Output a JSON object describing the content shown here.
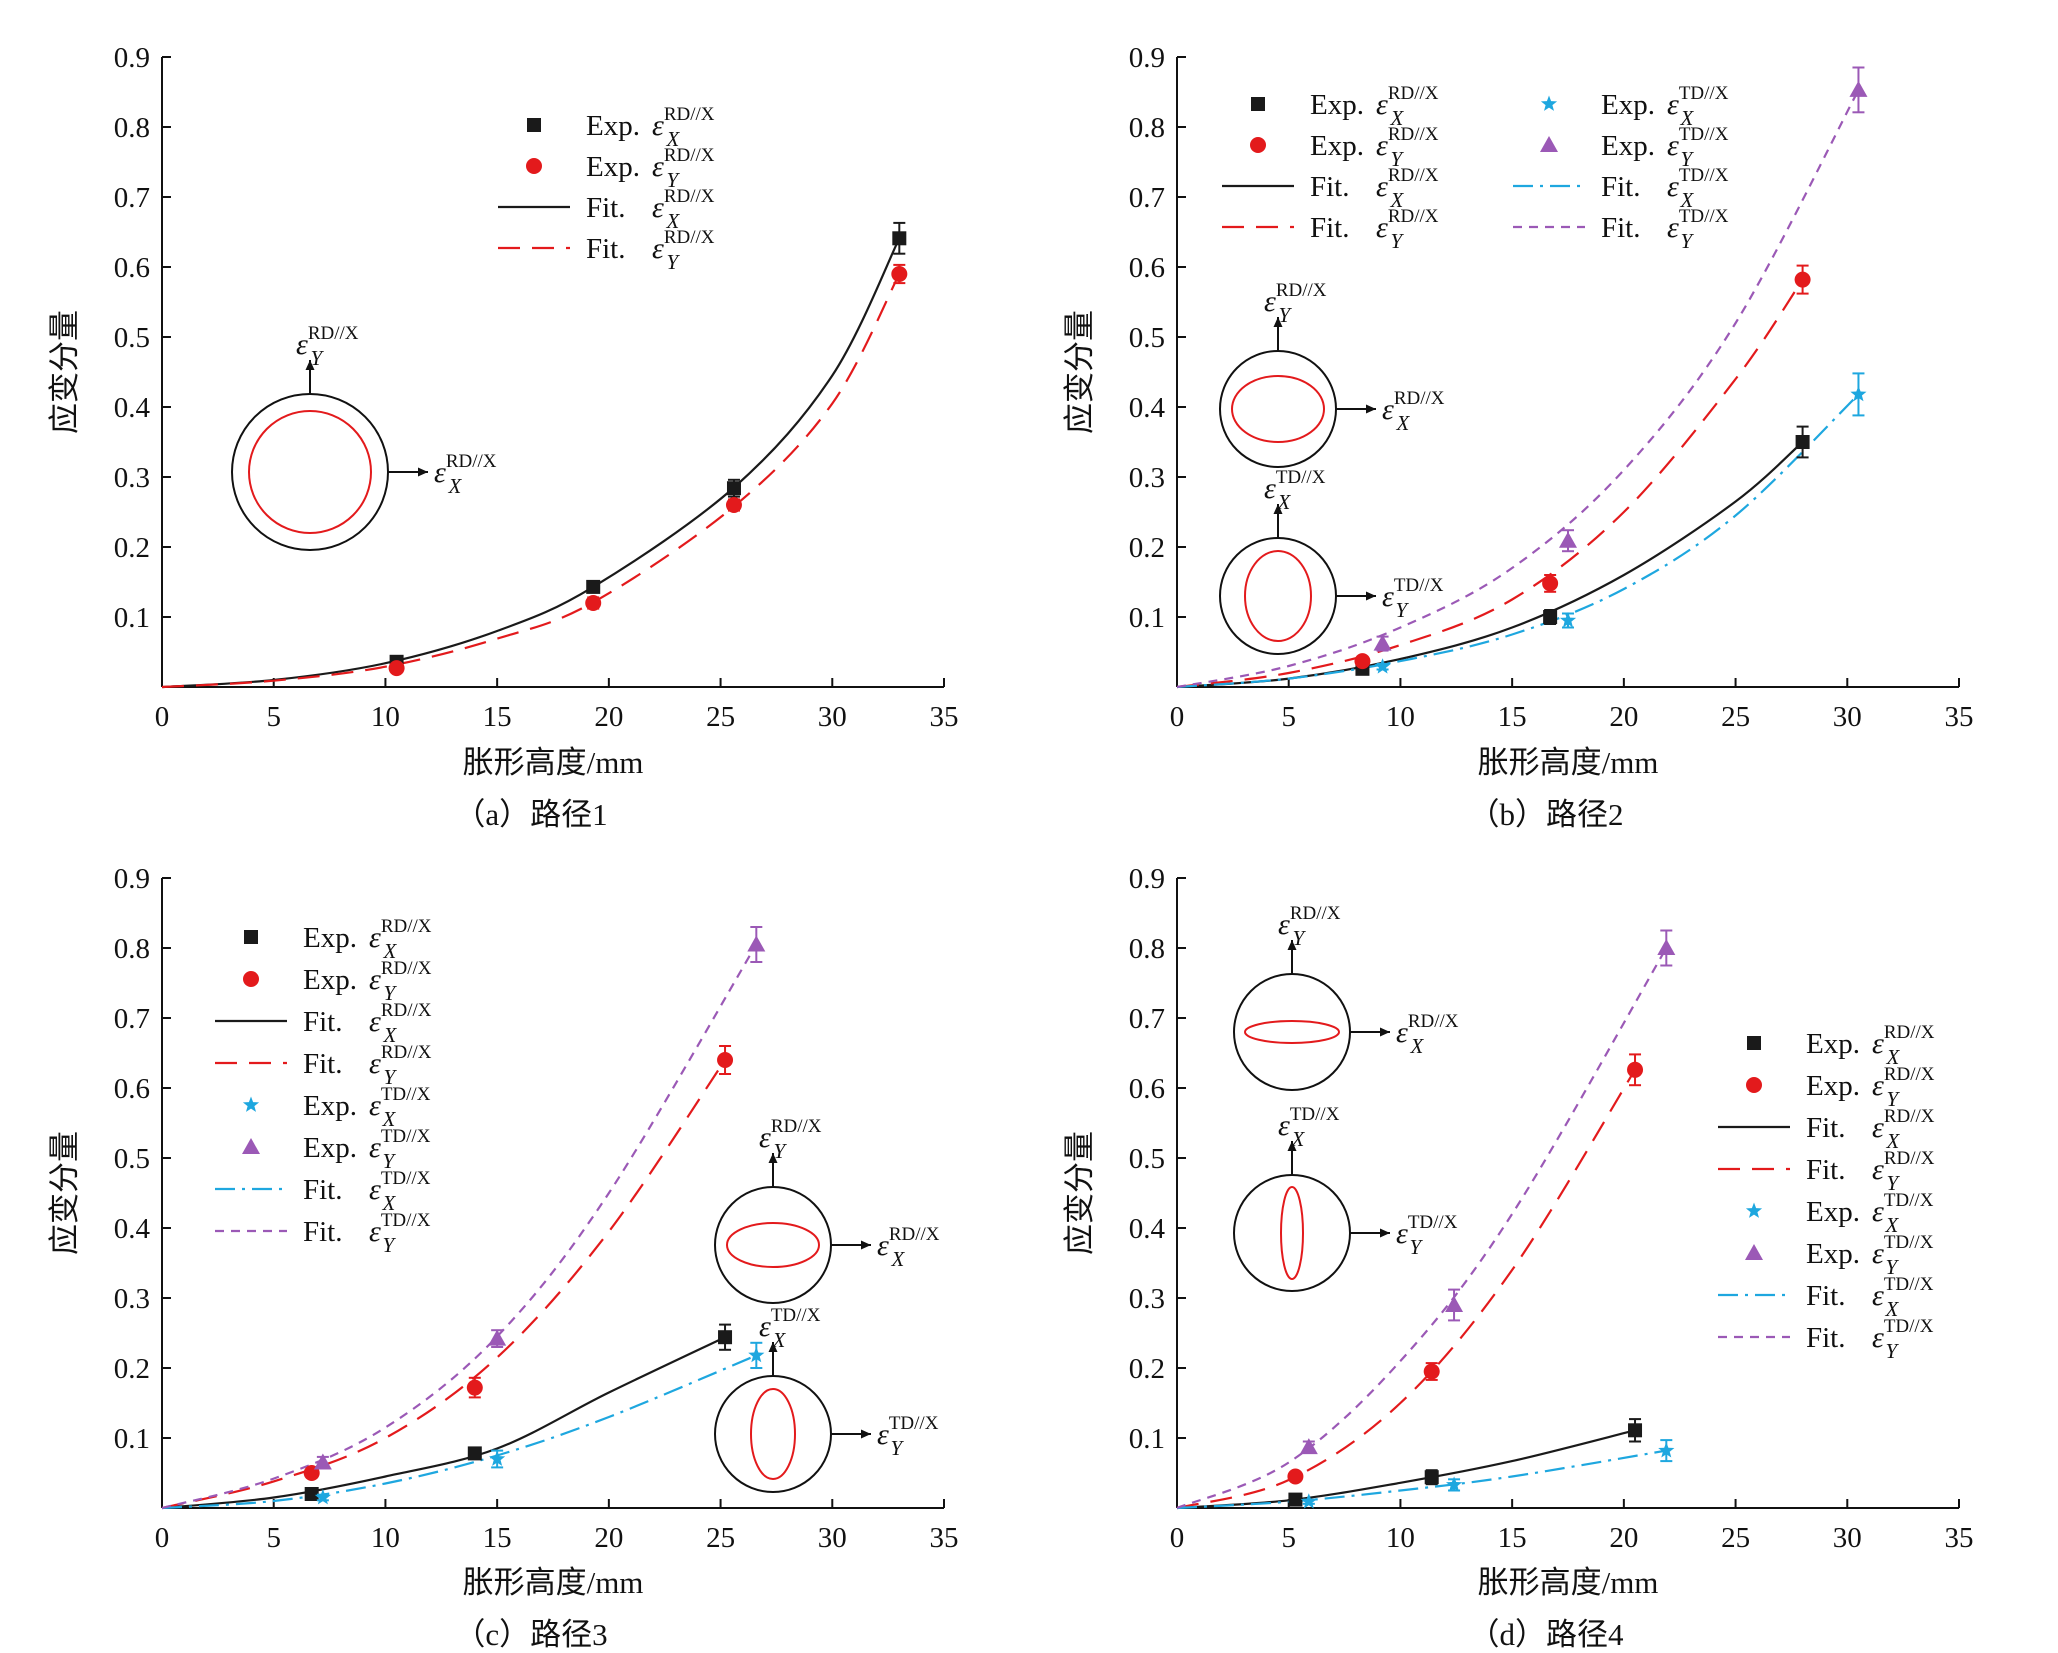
{
  "chart_data": [
    {
      "type": "line",
      "caption": "（a）路径1",
      "xlabel": "胀形高度/mm",
      "ylabel": "应变分量",
      "xlim": [
        0,
        35
      ],
      "ylim": [
        0,
        0.9
      ],
      "x_ticks": [
        0,
        5,
        10,
        15,
        20,
        25,
        30,
        35
      ],
      "y_ticks": [
        0.1,
        0.2,
        0.3,
        0.4,
        0.5,
        0.6,
        0.7,
        0.8,
        0.9
      ],
      "legend_position": "top-right",
      "series": [
        {
          "name": "Exp. ε_X^RD//X",
          "kind": "exp",
          "marker": "square",
          "color": "#1a1a1a",
          "x": [
            10.5,
            19.3,
            25.6,
            33.0
          ],
          "y": [
            0.036,
            0.143,
            0.284,
            0.641
          ],
          "err": [
            0.005,
            0.008,
            0.012,
            0.022
          ]
        },
        {
          "name": "Exp. ε_Y^RD//X",
          "kind": "exp",
          "marker": "circle",
          "color": "#e31a1c",
          "x": [
            10.5,
            19.3,
            25.6,
            33.0
          ],
          "y": [
            0.027,
            0.12,
            0.26,
            0.59
          ],
          "err": [
            0.005,
            0.008,
            0.008,
            0.013
          ]
        },
        {
          "name": "Fit. ε_X^RD//X",
          "kind": "fit",
          "dash": "solid",
          "color": "#1a1a1a",
          "x": [
            0,
            5,
            10,
            15,
            19.3,
            25.6,
            30,
            33.0
          ],
          "y": [
            0,
            0.01,
            0.034,
            0.08,
            0.143,
            0.285,
            0.445,
            0.641
          ]
        },
        {
          "name": "Fit. ε_Y^RD//X",
          "kind": "fit",
          "dash": "long",
          "color": "#e31a1c",
          "x": [
            0,
            5,
            10,
            15,
            19.3,
            25.6,
            30,
            33.0
          ],
          "y": [
            0,
            0.009,
            0.029,
            0.069,
            0.121,
            0.258,
            0.405,
            0.59
          ]
        }
      ],
      "insets": [
        {
          "shape": "circle",
          "x_label": "ε_X^RD//X",
          "y_label": "ε_Y^RD//X"
        }
      ]
    },
    {
      "type": "line",
      "caption": "（b）路径2",
      "xlabel": "胀形高度/mm",
      "ylabel": "应变分量",
      "xlim": [
        0,
        35
      ],
      "ylim": [
        0,
        0.9
      ],
      "x_ticks": [
        0,
        5,
        10,
        15,
        20,
        25,
        30,
        35
      ],
      "y_ticks": [
        0.1,
        0.2,
        0.3,
        0.4,
        0.5,
        0.6,
        0.7,
        0.8,
        0.9
      ],
      "legend_position": "top",
      "series": [
        {
          "name": "Exp. ε_X^RD//X",
          "kind": "exp",
          "marker": "square",
          "color": "#1a1a1a",
          "x": [
            8.3,
            16.7,
            28.0
          ],
          "y": [
            0.026,
            0.1,
            0.35
          ],
          "err": [
            0.004,
            0.01,
            0.022
          ]
        },
        {
          "name": "Exp. ε_Y^RD//X",
          "kind": "exp",
          "marker": "circle",
          "color": "#e31a1c",
          "x": [
            8.3,
            16.7,
            28.0
          ],
          "y": [
            0.037,
            0.148,
            0.582
          ],
          "err": [
            0.005,
            0.012,
            0.02
          ]
        },
        {
          "name": "Fit. ε_X^RD//X",
          "kind": "fit",
          "dash": "solid",
          "color": "#1a1a1a",
          "x": [
            0,
            5,
            10,
            15,
            20,
            25,
            28
          ],
          "y": [
            0,
            0.012,
            0.04,
            0.085,
            0.16,
            0.265,
            0.35
          ]
        },
        {
          "name": "Fit. ε_Y^RD//X",
          "kind": "fit",
          "dash": "long",
          "color": "#e31a1c",
          "x": [
            0,
            5,
            10,
            15,
            20,
            25,
            28
          ],
          "y": [
            0,
            0.02,
            0.06,
            0.125,
            0.25,
            0.44,
            0.582
          ]
        },
        {
          "name": "Exp. ε_X^TD//X",
          "kind": "exp",
          "marker": "star",
          "color": "#1ea7df",
          "x": [
            9.2,
            17.5,
            30.5
          ],
          "y": [
            0.029,
            0.095,
            0.418
          ],
          "err": [
            0.004,
            0.01,
            0.03
          ]
        },
        {
          "name": "Exp. ε_Y^TD//X",
          "kind": "exp",
          "marker": "triangle",
          "color": "#9b59b6",
          "x": [
            9.2,
            17.5,
            30.5
          ],
          "y": [
            0.062,
            0.209,
            0.853
          ],
          "err": [
            0.01,
            0.015,
            0.032
          ]
        },
        {
          "name": "Fit. ε_X^TD//X",
          "kind": "fit",
          "dash": "dashdot",
          "color": "#1ea7df",
          "x": [
            0,
            5,
            10,
            15,
            20,
            25,
            30.5
          ],
          "y": [
            0,
            0.012,
            0.037,
            0.075,
            0.14,
            0.245,
            0.418
          ]
        },
        {
          "name": "Fit. ε_Y^TD//X",
          "kind": "fit",
          "dash": "short",
          "color": "#9b59b6",
          "x": [
            0,
            5,
            10,
            15,
            20,
            25,
            30.5
          ],
          "y": [
            0,
            0.03,
            0.085,
            0.17,
            0.31,
            0.52,
            0.853
          ]
        }
      ],
      "insets": [
        {
          "shape": "horizontal-ellipse",
          "x_label": "ε_X^RD//X",
          "y_label": "ε_Y^RD//X"
        },
        {
          "shape": "vertical-ellipse",
          "x_label": "ε_Y^TD//X",
          "y_label": "ε_X^TD//X"
        }
      ]
    },
    {
      "type": "line",
      "caption": "（c）路径3",
      "xlabel": "胀形高度/mm",
      "ylabel": "应变分量",
      "xlim": [
        0,
        35
      ],
      "ylim": [
        0,
        0.9
      ],
      "x_ticks": [
        0,
        5,
        10,
        15,
        20,
        25,
        30,
        35
      ],
      "y_ticks": [
        0.1,
        0.2,
        0.3,
        0.4,
        0.5,
        0.6,
        0.7,
        0.8,
        0.9
      ],
      "legend_position": "top-left",
      "series": [
        {
          "name": "Exp. ε_X^RD//X",
          "kind": "exp",
          "marker": "square",
          "color": "#1a1a1a",
          "x": [
            6.7,
            14.0,
            25.2
          ],
          "y": [
            0.02,
            0.078,
            0.244
          ],
          "err": [
            0.004,
            0.008,
            0.018
          ]
        },
        {
          "name": "Exp. ε_Y^RD//X",
          "kind": "exp",
          "marker": "circle",
          "color": "#e31a1c",
          "x": [
            6.7,
            14.0,
            25.2
          ],
          "y": [
            0.05,
            0.172,
            0.64
          ],
          "err": [
            0.006,
            0.014,
            0.02
          ]
        },
        {
          "name": "Fit. ε_X^RD//X",
          "kind": "fit",
          "dash": "solid",
          "color": "#1a1a1a",
          "x": [
            0,
            5,
            10,
            15,
            20,
            25.2
          ],
          "y": [
            0,
            0.015,
            0.045,
            0.085,
            0.165,
            0.244
          ]
        },
        {
          "name": "Fit. ε_Y^RD//X",
          "kind": "fit",
          "dash": "long",
          "color": "#e31a1c",
          "x": [
            0,
            5,
            10,
            15,
            20,
            25.2
          ],
          "y": [
            0,
            0.038,
            0.1,
            0.215,
            0.395,
            0.64
          ]
        },
        {
          "name": "Exp. ε_X^TD//X",
          "kind": "exp",
          "marker": "star",
          "color": "#1ea7df",
          "x": [
            7.2,
            15.0,
            26.6
          ],
          "y": [
            0.015,
            0.07,
            0.218
          ],
          "err": [
            0.004,
            0.012,
            0.018
          ]
        },
        {
          "name": "Exp. ε_Y^TD//X",
          "kind": "exp",
          "marker": "triangle",
          "color": "#9b59b6",
          "x": [
            7.2,
            15.0,
            26.6
          ],
          "y": [
            0.065,
            0.242,
            0.805
          ],
          "err": [
            0.008,
            0.012,
            0.025
          ]
        },
        {
          "name": "Fit. ε_X^TD//X",
          "kind": "fit",
          "dash": "dashdot",
          "color": "#1ea7df",
          "x": [
            0,
            5,
            10,
            15,
            20,
            26.6
          ],
          "y": [
            0,
            0.01,
            0.035,
            0.075,
            0.13,
            0.218
          ]
        },
        {
          "name": "Fit. ε_Y^TD//X",
          "kind": "fit",
          "dash": "short",
          "color": "#9b59b6",
          "x": [
            0,
            5,
            10,
            15,
            20,
            26.6
          ],
          "y": [
            0,
            0.042,
            0.115,
            0.245,
            0.45,
            0.805
          ]
        }
      ],
      "insets": [
        {
          "shape": "horizontal-ellipse",
          "x_label": "ε_X^RD//X",
          "y_label": "ε_Y^RD//X"
        },
        {
          "shape": "vertical-ellipse",
          "x_label": "ε_Y^TD//X",
          "y_label": "ε_X^TD//X"
        }
      ]
    },
    {
      "type": "line",
      "caption": "（d）路径4",
      "xlabel": "胀形高度/mm",
      "ylabel": "应变分量",
      "xlim": [
        0,
        35
      ],
      "ylim": [
        0,
        0.9
      ],
      "x_ticks": [
        0,
        5,
        10,
        15,
        20,
        25,
        30,
        35
      ],
      "y_ticks": [
        0.1,
        0.2,
        0.3,
        0.4,
        0.5,
        0.6,
        0.7,
        0.8,
        0.9
      ],
      "legend_position": "right",
      "series": [
        {
          "name": "Exp. ε_X^RD//X",
          "kind": "exp",
          "marker": "square",
          "color": "#1a1a1a",
          "x": [
            5.3,
            11.4,
            20.5
          ],
          "y": [
            0.012,
            0.044,
            0.111
          ],
          "err": [
            0.004,
            0.01,
            0.016
          ]
        },
        {
          "name": "Exp. ε_Y^RD//X",
          "kind": "exp",
          "marker": "circle",
          "color": "#e31a1c",
          "x": [
            5.3,
            11.4,
            20.5
          ],
          "y": [
            0.045,
            0.195,
            0.626
          ],
          "err": [
            0.005,
            0.012,
            0.022
          ]
        },
        {
          "name": "Fit. ε_X^RD//X",
          "kind": "fit",
          "dash": "solid",
          "color": "#1a1a1a",
          "x": [
            0,
            5,
            10,
            15,
            20.5
          ],
          "y": [
            0,
            0.011,
            0.036,
            0.067,
            0.111
          ]
        },
        {
          "name": "Fit. ε_Y^RD//X",
          "kind": "fit",
          "dash": "long",
          "color": "#e31a1c",
          "x": [
            0,
            5,
            10,
            15,
            20.5
          ],
          "y": [
            0,
            0.04,
            0.15,
            0.34,
            0.626
          ]
        },
        {
          "name": "Exp. ε_X^TD//X",
          "kind": "exp",
          "marker": "star",
          "color": "#1ea7df",
          "x": [
            5.9,
            12.4,
            21.9
          ],
          "y": [
            0.009,
            0.033,
            0.082
          ],
          "err": [
            0.003,
            0.008,
            0.015
          ]
        },
        {
          "name": "Exp. ε_Y^TD//X",
          "kind": "exp",
          "marker": "triangle",
          "color": "#9b59b6",
          "x": [
            5.9,
            12.4,
            21.9
          ],
          "y": [
            0.087,
            0.29,
            0.8
          ],
          "err": [
            0.008,
            0.022,
            0.025
          ]
        },
        {
          "name": "Fit. ε_X^TD//X",
          "kind": "fit",
          "dash": "dashdot",
          "color": "#1ea7df",
          "x": [
            0,
            5,
            10,
            15,
            21.9
          ],
          "y": [
            0,
            0.009,
            0.025,
            0.045,
            0.082
          ]
        },
        {
          "name": "Fit. ε_Y^TD//X",
          "kind": "fit",
          "dash": "short",
          "color": "#9b59b6",
          "x": [
            0,
            5,
            10,
            15,
            21.9
          ],
          "y": [
            0,
            0.065,
            0.21,
            0.42,
            0.8
          ]
        }
      ],
      "insets": [
        {
          "shape": "flat-ellipse",
          "x_label": "ε_X^RD//X",
          "y_label": "ε_Y^RD//X"
        },
        {
          "shape": "tall-ellipse",
          "x_label": "ε_Y^TD//X",
          "y_label": "ε_X^TD//X"
        }
      ]
    }
  ]
}
